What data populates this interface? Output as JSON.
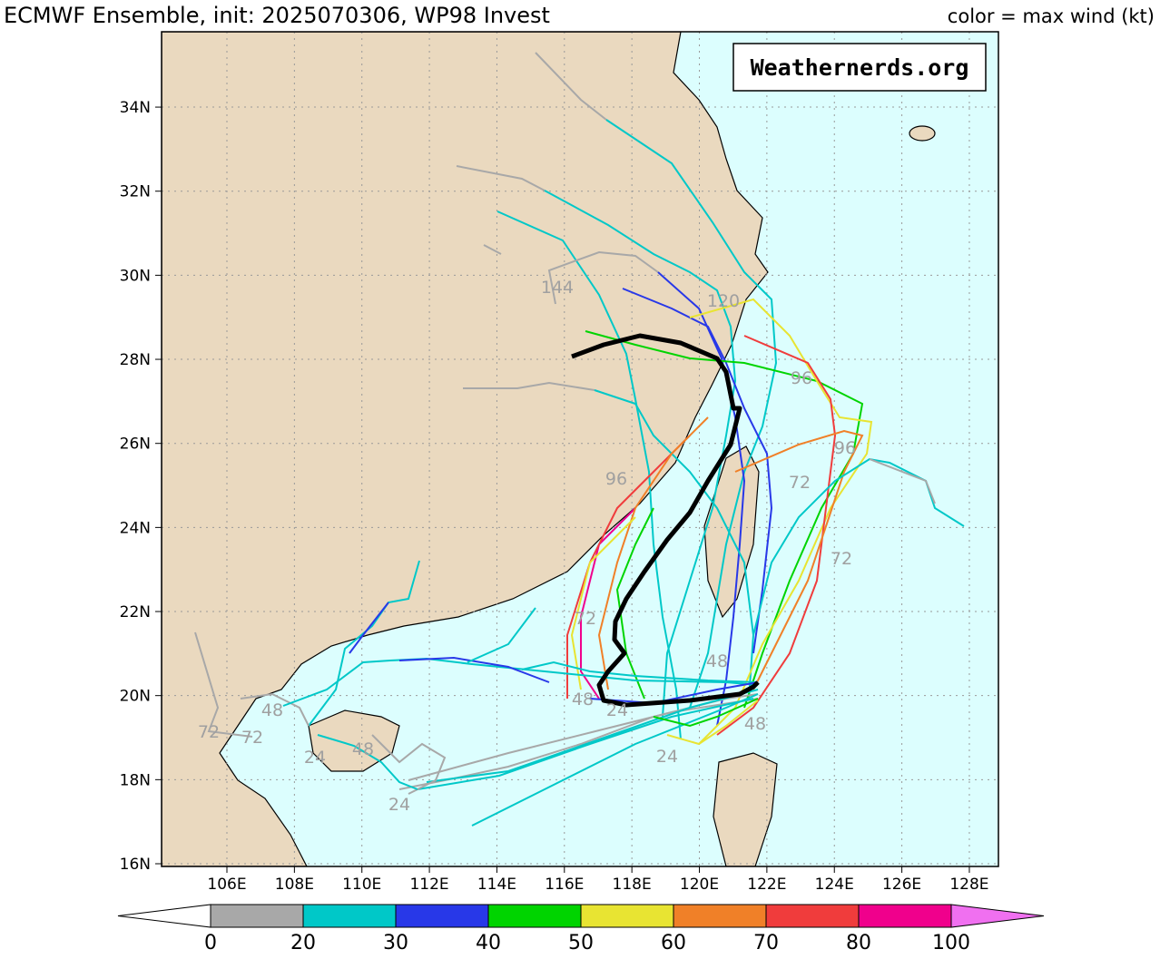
{
  "header": {
    "title": "ECMWF Ensemble, init: 2025070306, WP98 Invest",
    "legend_title": "color = max wind (kt)"
  },
  "watermark": "Weathernerds.org",
  "axes": {
    "lon_labels": [
      "106E",
      "108E",
      "110E",
      "112E",
      "114E",
      "116E",
      "118E",
      "120E",
      "122E",
      "124E",
      "126E",
      "128E"
    ],
    "lat_labels": [
      "16N",
      "18N",
      "20N",
      "22N",
      "24N",
      "26N",
      "28N",
      "30N",
      "32N",
      "34N"
    ]
  },
  "hour_labels": [
    "144",
    "120",
    "96",
    "96",
    "96",
    "72",
    "72",
    "72",
    "48",
    "48",
    "72",
    "72",
    "24",
    "48",
    "24",
    "24",
    "24",
    "48",
    "48"
  ],
  "colorbar": {
    "labels": [
      0,
      20,
      30,
      40,
      50,
      60,
      70,
      80,
      100
    ],
    "colors": [
      "#a8a8a8",
      "#00c8c8",
      "#2838e8",
      "#00d400",
      "#e8e432",
      "#f08028",
      "#f03c3c",
      "#f0008c"
    ],
    "under_color": "#ffffff",
    "over_color": "#f070f0"
  }
}
